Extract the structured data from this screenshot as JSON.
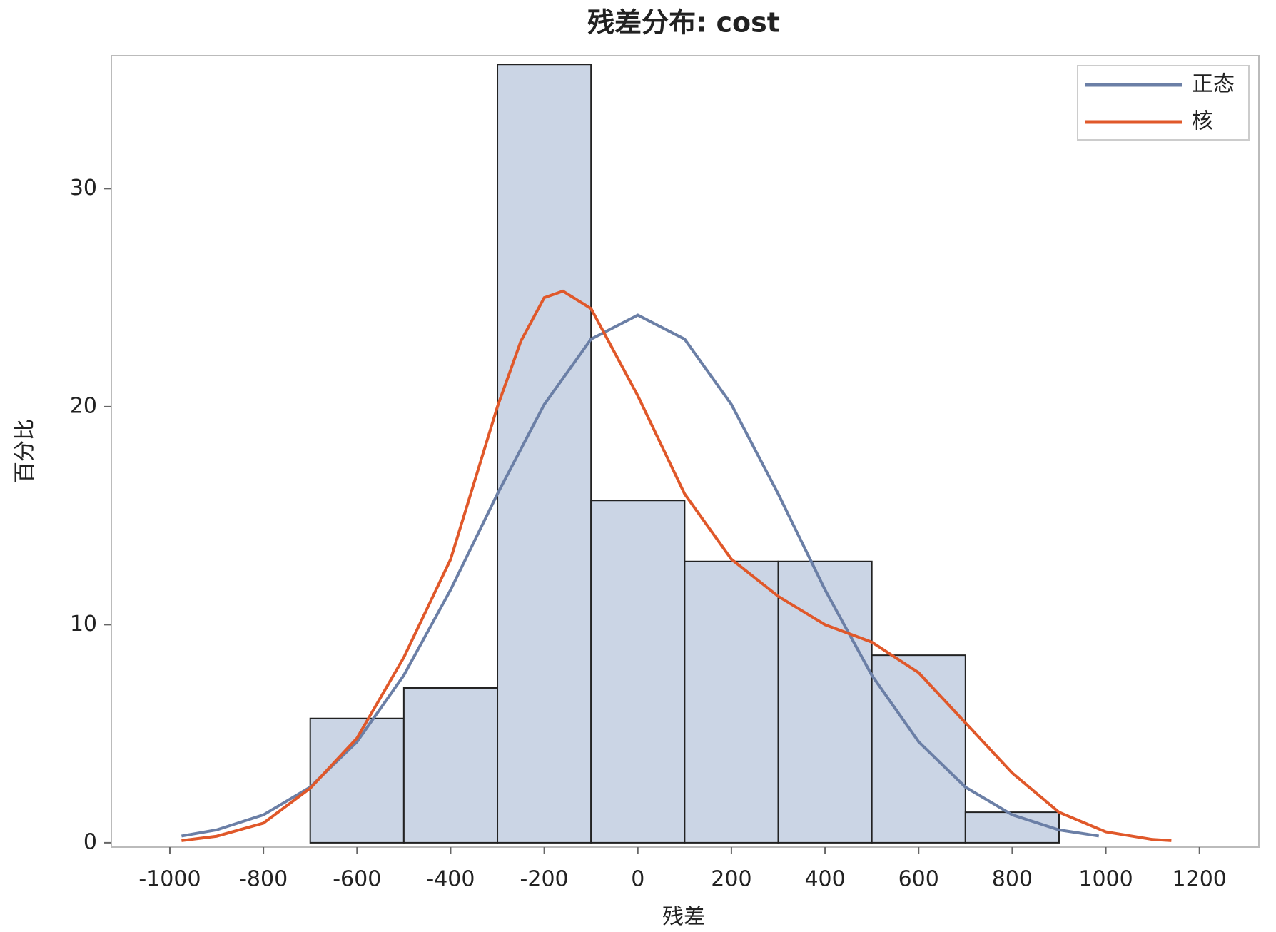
{
  "chart_data": {
    "type": "histogram",
    "title": "残差分布: cost",
    "x_label": "残差",
    "y_label": "百分比",
    "bins": [
      -700,
      -500,
      -300,
      -100,
      100,
      300,
      500,
      700,
      900
    ],
    "counts": [
      5.7,
      7.1,
      35.7,
      15.7,
      12.9,
      12.9,
      8.6,
      1.4
    ],
    "color": "#cbd5e5",
    "series": [
      {
        "name": "正态",
        "color": "#6b7fa6",
        "x": [
          -975,
          -900,
          -800,
          -700,
          -600,
          -500,
          -400,
          -300,
          -200,
          -100,
          0,
          100,
          200,
          300,
          400,
          500,
          600,
          700,
          800,
          900,
          985
        ],
        "values": [
          0.31,
          0.59,
          1.28,
          2.55,
          4.63,
          7.68,
          11.6,
          16.0,
          20.1,
          23.1,
          24.2,
          23.1,
          20.1,
          16.0,
          11.6,
          7.68,
          4.63,
          2.55,
          1.28,
          0.59,
          0.31
        ]
      },
      {
        "name": "核",
        "color": "#e0582a",
        "x": [
          -975,
          -900,
          -800,
          -700,
          -600,
          -500,
          -400,
          -300,
          -250,
          -200,
          -160,
          -100,
          0,
          100,
          200,
          300,
          400,
          500,
          600,
          700,
          800,
          900,
          1000,
          1100,
          1140
        ],
        "values": [
          0.1,
          0.3,
          0.9,
          2.5,
          4.8,
          8.5,
          13,
          20,
          23,
          25,
          25.3,
          24.5,
          20.5,
          16,
          13,
          11.3,
          10,
          9.2,
          7.8,
          5.5,
          3.2,
          1.4,
          0.5,
          0.15,
          0.1
        ]
      }
    ],
    "xlim": [
      -1125,
      1327
    ],
    "ylim": [
      -0.2,
      36.1
    ],
    "xticks": [
      -1000,
      -800,
      -600,
      -400,
      -200,
      0,
      200,
      400,
      600,
      800,
      1000,
      1200
    ],
    "yticks": [
      0,
      10,
      20,
      30
    ],
    "legend": "upper right"
  }
}
